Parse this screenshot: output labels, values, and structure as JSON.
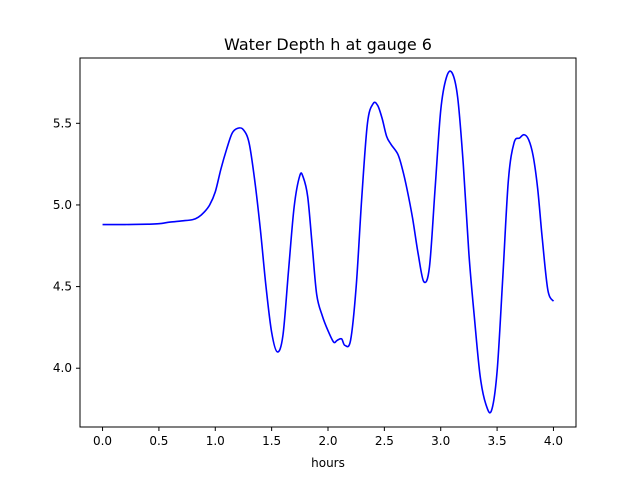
{
  "chart_data": {
    "type": "line",
    "title": "Water Depth h at gauge 6",
    "xlabel": "hours",
    "ylabel": "",
    "xlim": [
      -0.2,
      4.2
    ],
    "ylim": [
      3.64,
      5.9
    ],
    "xticks": [
      0.0,
      0.5,
      1.0,
      1.5,
      2.0,
      2.5,
      3.0,
      3.5,
      4.0
    ],
    "xtick_labels": [
      "0.0",
      "0.5",
      "1.0",
      "1.5",
      "2.0",
      "2.5",
      "3.0",
      "3.5",
      "4.0"
    ],
    "yticks": [
      4.0,
      4.5,
      5.0,
      5.5
    ],
    "ytick_labels": [
      "4.0",
      "4.5",
      "5.0",
      "5.5"
    ],
    "grid": false,
    "series": [
      {
        "color": "#0000ff",
        "x": [
          0.0,
          0.2,
          0.4,
          0.5,
          0.6,
          0.7,
          0.8,
          0.85,
          0.9,
          0.95,
          1.0,
          1.05,
          1.1,
          1.15,
          1.2,
          1.25,
          1.3,
          1.35,
          1.4,
          1.45,
          1.5,
          1.55,
          1.6,
          1.65,
          1.7,
          1.75,
          1.78,
          1.82,
          1.86,
          1.9,
          1.95,
          2.0,
          2.05,
          2.08,
          2.12,
          2.15,
          2.2,
          2.25,
          2.3,
          2.35,
          2.4,
          2.44,
          2.48,
          2.52,
          2.56,
          2.62,
          2.66,
          2.7,
          2.75,
          2.8,
          2.85,
          2.9,
          2.95,
          3.0,
          3.05,
          3.1,
          3.15,
          3.2,
          3.25,
          3.3,
          3.35,
          3.4,
          3.45,
          3.5,
          3.55,
          3.6,
          3.65,
          3.7,
          3.74,
          3.78,
          3.82,
          3.86,
          3.9,
          3.95,
          4.0
        ],
        "y": [
          4.88,
          4.88,
          4.882,
          4.885,
          4.895,
          4.902,
          4.91,
          4.925,
          4.955,
          5.0,
          5.08,
          5.22,
          5.34,
          5.44,
          5.47,
          5.46,
          5.38,
          5.15,
          4.85,
          4.5,
          4.22,
          4.1,
          4.2,
          4.6,
          4.99,
          5.18,
          5.17,
          5.05,
          4.75,
          4.45,
          4.32,
          4.23,
          4.16,
          4.17,
          4.18,
          4.14,
          4.17,
          4.5,
          5.05,
          5.5,
          5.62,
          5.61,
          5.53,
          5.42,
          5.37,
          5.31,
          5.22,
          5.1,
          4.92,
          4.7,
          4.53,
          4.62,
          5.1,
          5.58,
          5.78,
          5.81,
          5.66,
          5.25,
          4.7,
          4.3,
          3.95,
          3.78,
          3.74,
          3.98,
          4.55,
          5.15,
          5.38,
          5.41,
          5.43,
          5.4,
          5.3,
          5.1,
          4.8,
          4.48,
          4.41
        ]
      }
    ]
  }
}
